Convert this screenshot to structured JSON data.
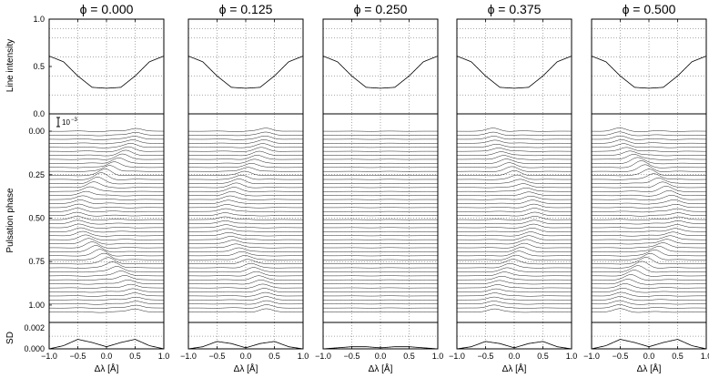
{
  "figure": {
    "row_labels": {
      "intensity": "Line intensity",
      "phase": "Pulsation phase",
      "sd": "SD"
    },
    "scale_marker": "10",
    "scale_marker_exp": "−3",
    "xlabel": "Δλ [Å]",
    "x_ticks": [
      "−1.0",
      "−0.5",
      "0.0",
      "0.5",
      "1.0"
    ],
    "intensity_ticks": [
      "1.0",
      "0.5",
      "0.0"
    ],
    "phase_ticks": [
      "0.00",
      "0.25",
      "0.50",
      "0.75",
      "1.00"
    ],
    "sd_ticks": [
      "0.002",
      "0.000"
    ]
  },
  "chart_data": [
    {
      "type": "line",
      "title": "ϕ = 0.000",
      "phi": 0.0,
      "x": [
        -1.0,
        -0.75,
        -0.5,
        -0.25,
        0.0,
        0.25,
        0.5,
        0.75,
        1.0
      ],
      "intensity": [
        0.61,
        0.55,
        0.4,
        0.28,
        0.27,
        0.28,
        0.4,
        0.55,
        0.61
      ],
      "sd": [
        0.0,
        0.0003,
        0.0009,
        0.0006,
        0.0002,
        0.0006,
        0.0009,
        0.0003,
        0.0
      ],
      "xlim": [
        -1.0,
        1.0
      ],
      "ylim_intensity": [
        0.0,
        1.0
      ],
      "ylim_phase": [
        -0.1,
        1.1
      ],
      "ylim_sd": [
        0.0,
        0.0025
      ],
      "variation_strength": 1.0
    },
    {
      "type": "line",
      "title": "ϕ = 0.125",
      "phi": 0.125,
      "x": [
        -1.0,
        -0.75,
        -0.5,
        -0.25,
        0.0,
        0.25,
        0.5,
        0.75,
        1.0
      ],
      "intensity": [
        0.61,
        0.55,
        0.4,
        0.28,
        0.27,
        0.28,
        0.4,
        0.55,
        0.61
      ],
      "sd": [
        0.0,
        0.0002,
        0.0007,
        0.0005,
        0.0001,
        0.0005,
        0.0007,
        0.0002,
        0.0
      ],
      "xlim": [
        -1.0,
        1.0
      ],
      "ylim_intensity": [
        0.0,
        1.0
      ],
      "ylim_phase": [
        -0.1,
        1.1
      ],
      "ylim_sd": [
        0.0,
        0.0025
      ],
      "variation_strength": 0.7
    },
    {
      "type": "line",
      "title": "ϕ = 0.250",
      "phi": 0.25,
      "x": [
        -1.0,
        -0.75,
        -0.5,
        -0.25,
        0.0,
        0.25,
        0.5,
        0.75,
        1.0
      ],
      "intensity": [
        0.61,
        0.55,
        0.4,
        0.28,
        0.27,
        0.28,
        0.4,
        0.55,
        0.61
      ],
      "sd": [
        0.0,
        0.0001,
        0.0002,
        0.0002,
        0.0001,
        0.0002,
        0.0002,
        0.0001,
        0.0
      ],
      "xlim": [
        -1.0,
        1.0
      ],
      "ylim_intensity": [
        0.0,
        1.0
      ],
      "ylim_phase": [
        -0.1,
        1.1
      ],
      "ylim_sd": [
        0.0,
        0.0025
      ],
      "variation_strength": 0.0
    },
    {
      "type": "line",
      "title": "ϕ = 0.375",
      "phi": 0.375,
      "x": [
        -1.0,
        -0.75,
        -0.5,
        -0.25,
        0.0,
        0.25,
        0.5,
        0.75,
        1.0
      ],
      "intensity": [
        0.61,
        0.55,
        0.4,
        0.28,
        0.27,
        0.28,
        0.4,
        0.55,
        0.61
      ],
      "sd": [
        0.0,
        0.0002,
        0.0007,
        0.0005,
        0.0001,
        0.0005,
        0.0007,
        0.0002,
        0.0
      ],
      "xlim": [
        -1.0,
        1.0
      ],
      "ylim_intensity": [
        0.0,
        1.0
      ],
      "ylim_phase": [
        -0.1,
        1.1
      ],
      "ylim_sd": [
        0.0,
        0.0025
      ],
      "variation_strength": -0.7
    },
    {
      "type": "line",
      "title": "ϕ = 0.500",
      "phi": 0.5,
      "x": [
        -1.0,
        -0.75,
        -0.5,
        -0.25,
        0.0,
        0.25,
        0.5,
        0.75,
        1.0
      ],
      "intensity": [
        0.61,
        0.55,
        0.4,
        0.28,
        0.27,
        0.28,
        0.4,
        0.55,
        0.61
      ],
      "sd": [
        0.0,
        0.0003,
        0.0009,
        0.0006,
        0.0002,
        0.0006,
        0.0009,
        0.0003,
        0.0
      ],
      "xlim": [
        -1.0,
        1.0
      ],
      "ylim_intensity": [
        0.0,
        1.0
      ],
      "ylim_phase": [
        -0.1,
        1.1
      ],
      "ylim_sd": [
        0.0,
        0.0025
      ],
      "variation_strength": -1.0
    }
  ]
}
